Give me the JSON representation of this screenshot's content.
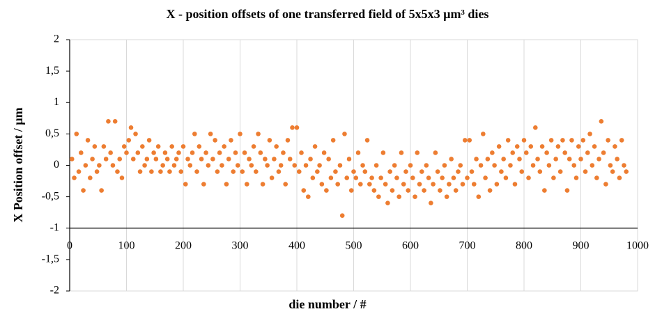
{
  "chart_data": {
    "type": "scatter",
    "title": "X - position offsets of one transferred field of 5x5x3 µm³ dies",
    "x_label": "die number / #",
    "y_label": "X Position offset / µm",
    "color": "#ed7d31",
    "xlim": [
      0,
      1000
    ],
    "xticks": [
      0,
      100,
      200,
      300,
      400,
      500,
      600,
      700,
      800,
      900,
      1000
    ],
    "ylim": [
      -2,
      2
    ],
    "yticks": [
      -2,
      {
        "value": -1.5,
        "label": "-1,5"
      },
      -1,
      {
        "value": -0.5,
        "label": "-0,5"
      },
      0,
      {
        "value": 0.5,
        "label": "0,5"
      },
      1,
      {
        "value": 1.5,
        "label": "1,5"
      },
      2
    ],
    "x_axis_crosses": -1,
    "grid": true,
    "x": [
      4,
      8,
      12,
      16,
      20,
      24,
      28,
      32,
      36,
      40,
      44,
      48,
      52,
      56,
      60,
      64,
      68,
      72,
      76,
      80,
      84,
      88,
      92,
      96,
      100,
      104,
      108,
      112,
      116,
      120,
      124,
      128,
      132,
      136,
      140,
      144,
      148,
      152,
      156,
      160,
      164,
      168,
      172,
      176,
      180,
      184,
      188,
      192,
      196,
      200,
      204,
      208,
      212,
      216,
      220,
      224,
      228,
      232,
      236,
      240,
      244,
      248,
      252,
      256,
      260,
      264,
      268,
      272,
      276,
      280,
      284,
      288,
      292,
      296,
      300,
      304,
      308,
      312,
      316,
      320,
      324,
      328,
      332,
      336,
      340,
      344,
      348,
      352,
      356,
      360,
      364,
      368,
      372,
      376,
      380,
      384,
      388,
      392,
      396,
      400,
      404,
      408,
      412,
      416,
      420,
      424,
      428,
      432,
      436,
      440,
      444,
      448,
      452,
      456,
      460,
      464,
      468,
      472,
      476,
      480,
      484,
      488,
      492,
      496,
      500,
      504,
      508,
      512,
      516,
      520,
      524,
      528,
      532,
      536,
      540,
      544,
      548,
      552,
      556,
      560,
      564,
      568,
      572,
      576,
      580,
      584,
      588,
      592,
      596,
      600,
      604,
      608,
      612,
      616,
      620,
      624,
      628,
      632,
      636,
      640,
      644,
      648,
      652,
      656,
      660,
      664,
      668,
      672,
      676,
      680,
      684,
      688,
      692,
      696,
      700,
      704,
      708,
      712,
      716,
      720,
      724,
      728,
      732,
      736,
      740,
      744,
      748,
      752,
      756,
      760,
      764,
      768,
      772,
      776,
      780,
      784,
      788,
      792,
      796,
      800,
      804,
      808,
      812,
      816,
      820,
      824,
      828,
      832,
      836,
      840,
      844,
      848,
      852,
      856,
      860,
      864,
      868,
      872,
      876,
      880,
      884,
      888,
      892,
      896,
      900,
      904,
      908,
      912,
      916,
      920,
      924,
      928,
      932,
      936,
      940,
      944,
      948,
      952,
      956,
      960,
      964,
      968,
      972,
      976,
      980
    ],
    "values": [
      0.1,
      -0.2,
      0.5,
      -0.1,
      0.2,
      -0.4,
      0,
      0.4,
      -0.2,
      0.1,
      0.3,
      -0.1,
      0,
      -0.4,
      0.3,
      0.1,
      0.7,
      0.2,
      0,
      0.7,
      -0.1,
      0.1,
      -0.2,
      0.3,
      0.2,
      0.4,
      0.6,
      0.1,
      0.5,
      0.2,
      -0.1,
      0.3,
      0,
      0.1,
      0.4,
      -0.1,
      0.2,
      0.1,
      0.3,
      -0.1,
      0,
      0.2,
      0.1,
      -0.1,
      0.3,
      0,
      0.1,
      0.2,
      -0.1,
      0.3,
      -0.3,
      0.1,
      0,
      0.2,
      0.5,
      -0.1,
      0.3,
      0.1,
      -0.3,
      0.2,
      0,
      0.5,
      0.1,
      0.4,
      -0.1,
      0.2,
      0,
      0.3,
      -0.3,
      0.1,
      0.4,
      -0.1,
      0.2,
      0,
      0.5,
      -0.1,
      0.2,
      -0.3,
      0.1,
      0,
      0.3,
      -0.1,
      0.5,
      0.2,
      -0.3,
      0.1,
      0,
      0.4,
      -0.2,
      0.1,
      0.3,
      -0.1,
      0,
      0.2,
      -0.3,
      0.4,
      0.1,
      0.6,
      0,
      0.6,
      -0.1,
      0.2,
      -0.4,
      0,
      -0.5,
      0.1,
      -0.2,
      0.3,
      -0.1,
      0,
      -0.3,
      0.2,
      -0.4,
      0.1,
      -0.2,
      0.4,
      -0.1,
      -0.3,
      0,
      -0.8,
      0.5,
      -0.2,
      0.1,
      -0.4,
      -0.1,
      -0.2,
      0.2,
      -0.3,
      0,
      -0.1,
      0.4,
      -0.3,
      -0.2,
      -0.4,
      0,
      -0.5,
      -0.2,
      0.2,
      -0.3,
      -0.6,
      -0.1,
      -0.4,
      0,
      -0.2,
      -0.5,
      0.2,
      -0.3,
      -0.1,
      -0.4,
      0,
      -0.2,
      -0.5,
      0.2,
      -0.3,
      -0.1,
      -0.4,
      0,
      -0.2,
      -0.6,
      -0.3,
      0.2,
      -0.1,
      -0.4,
      -0.2,
      0,
      -0.5,
      -0.3,
      0.1,
      -0.2,
      -0.4,
      -0.1,
      0,
      -0.3,
      0.4,
      -0.2,
      0.4,
      -0.1,
      -0.3,
      0.1,
      -0.5,
      0,
      0.5,
      -0.2,
      0.1,
      -0.4,
      0.2,
      0,
      -0.3,
      0.3,
      -0.1,
      0.1,
      -0.2,
      0.4,
      0,
      0.2,
      -0.3,
      0.3,
      0.1,
      -0.1,
      0.4,
      0.2,
      -0.2,
      0.3,
      0,
      0.6,
      0.1,
      -0.1,
      0.3,
      -0.4,
      0.2,
      0,
      0.4,
      -0.2,
      0.1,
      0.3,
      -0.1,
      0.4,
      0.2,
      -0.4,
      0.1,
      0.4,
      0,
      -0.2,
      0.3,
      0.1,
      0.4,
      -0.1,
      0.2,
      0.5,
      0,
      0.3,
      -0.2,
      0.1,
      0.7,
      0.2,
      -0.3,
      0.4,
      0,
      -0.1,
      0.3,
      0.1,
      -0.2,
      0.4,
      0,
      -0.1
    ]
  }
}
